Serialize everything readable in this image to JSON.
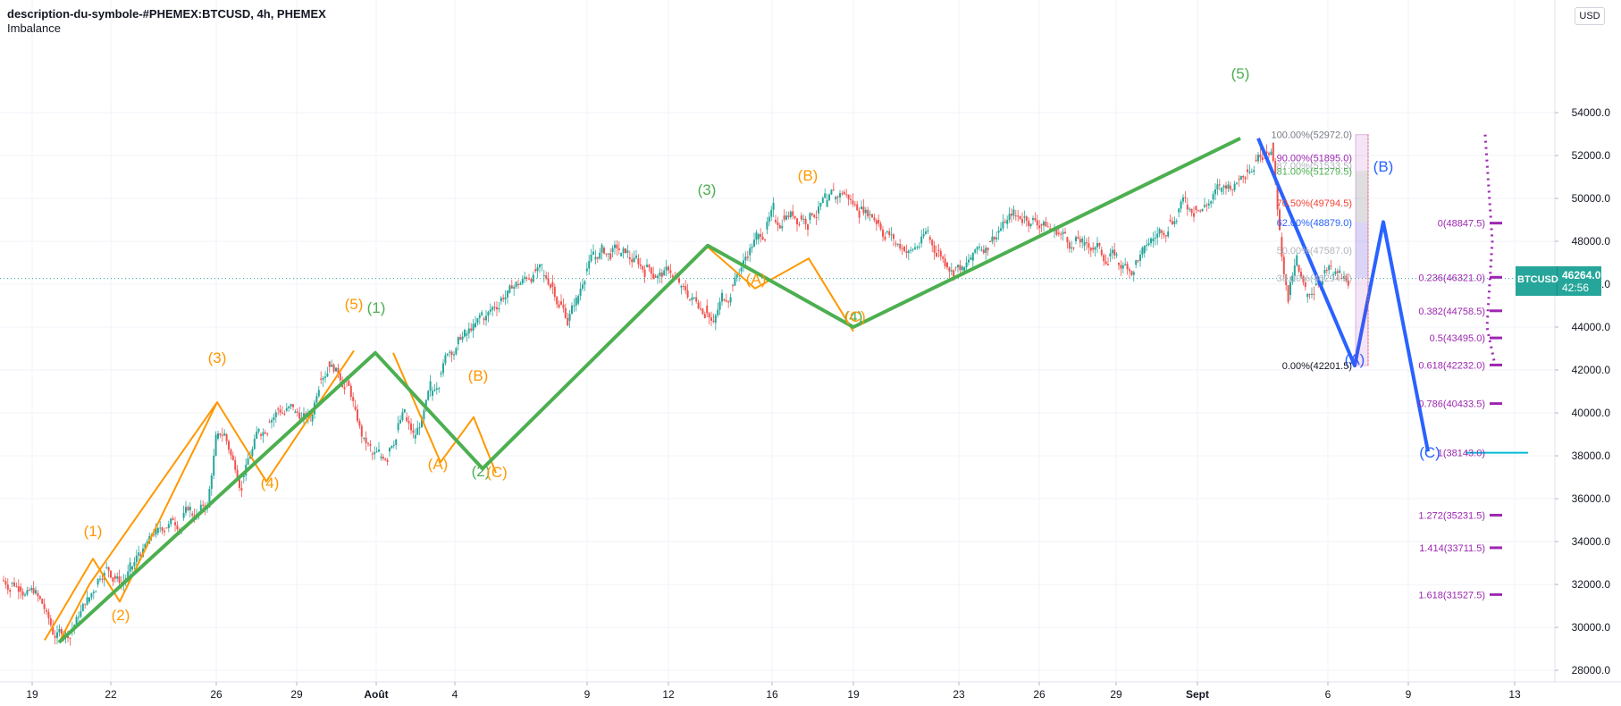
{
  "header": {
    "title": "description-du-symbole-#PHEMEX:BTCUSD, 4h, PHEMEX",
    "indicator": "Imbalance"
  },
  "currency_button": "USD",
  "price_box": {
    "symbol": "BTCUSD",
    "price": "46264.0",
    "countdown": "42:56"
  },
  "colors": {
    "green_wave": "#4caf50",
    "orange_wave": "#ff9800",
    "blue_wave": "#2962ff",
    "fib_ext": "#9c27b0",
    "up_candle": "#26a69a",
    "down_candle": "#ef5350",
    "target_line": "#00bcd4"
  },
  "chart_data": {
    "type": "candlestick",
    "y_axis": {
      "ticks": [
        "28000.0",
        "30000.0",
        "32000.0",
        "34000.0",
        "36000.0",
        "38000.0",
        "40000.0",
        "42000.0",
        "44000.0",
        "46000.0",
        "48000.0",
        "50000.0",
        "52000.0",
        "54000.0"
      ],
      "ylim": [
        27200,
        56000
      ],
      "top_label": "5"
    },
    "x_axis": {
      "ticks": [
        "19",
        "22",
        "26",
        "29",
        "Août",
        "4",
        "9",
        "12",
        "16",
        "19",
        "23",
        "26",
        "29",
        "Sept",
        "6",
        "9",
        "13"
      ]
    },
    "current_price": 46264.0,
    "price_path": [
      [
        0,
        32200
      ],
      [
        2,
        31900
      ],
      [
        4,
        31600
      ],
      [
        5,
        30800
      ],
      [
        6,
        29600
      ],
      [
        8,
        29800
      ],
      [
        10,
        31200
      ],
      [
        12,
        32800
      ],
      [
        14,
        32000
      ],
      [
        16,
        33400
      ],
      [
        18,
        34400
      ],
      [
        20,
        34900
      ],
      [
        22,
        35300
      ],
      [
        24,
        35600
      ],
      [
        25,
        38800
      ],
      [
        26,
        39000
      ],
      [
        27,
        37800
      ],
      [
        28,
        37000
      ],
      [
        30,
        39000
      ],
      [
        32,
        40200
      ],
      [
        34,
        40000
      ],
      [
        36,
        39600
      ],
      [
        37,
        41600
      ],
      [
        38,
        42400
      ],
      [
        39,
        42100
      ],
      [
        40,
        41600
      ],
      [
        41,
        40300
      ],
      [
        42,
        38800
      ],
      [
        43,
        38100
      ],
      [
        44,
        37900
      ],
      [
        45,
        38200
      ],
      [
        46,
        39200
      ],
      [
        47,
        39800
      ],
      [
        48,
        38800
      ],
      [
        49,
        39700
      ],
      [
        50,
        40800
      ],
      [
        52,
        42800
      ],
      [
        54,
        43600
      ],
      [
        56,
        44400
      ],
      [
        58,
        45200
      ],
      [
        60,
        46000
      ],
      [
        61,
        46300
      ],
      [
        62,
        46700
      ],
      [
        64,
        46100
      ],
      [
        66,
        44300
      ],
      [
        67,
        45100
      ],
      [
        68,
        46600
      ],
      [
        70,
        47700
      ],
      [
        72,
        47300
      ],
      [
        74,
        47200
      ],
      [
        76,
        46400
      ],
      [
        78,
        46400
      ],
      [
        80,
        45300
      ],
      [
        82,
        45000
      ],
      [
        83,
        44200
      ],
      [
        84,
        45300
      ],
      [
        86,
        46600
      ],
      [
        88,
        48100
      ],
      [
        90,
        49000
      ],
      [
        92,
        49400
      ],
      [
        94,
        49000
      ],
      [
        96,
        49600
      ],
      [
        98,
        50300
      ],
      [
        100,
        49500
      ],
      [
        102,
        49000
      ],
      [
        104,
        47900
      ],
      [
        106,
        47600
      ],
      [
        108,
        48200
      ],
      [
        110,
        47000
      ],
      [
        112,
        46600
      ],
      [
        114,
        47600
      ],
      [
        116,
        48400
      ],
      [
        118,
        49200
      ],
      [
        120,
        49000
      ],
      [
        122,
        48600
      ],
      [
        124,
        48200
      ],
      [
        126,
        47800
      ],
      [
        128,
        47600
      ],
      [
        130,
        47000
      ],
      [
        132,
        46900
      ],
      [
        134,
        48000
      ],
      [
        136,
        49000
      ],
      [
        138,
        49700
      ],
      [
        140,
        49600
      ],
      [
        142,
        50300
      ],
      [
        144,
        50900
      ],
      [
        146,
        51800
      ],
      [
        148,
        52600
      ],
      [
        149,
        48200
      ],
      [
        150,
        45500
      ],
      [
        151,
        46900
      ],
      [
        152,
        45400
      ],
      [
        154,
        46500
      ],
      [
        156,
        46300
      ],
      [
        157,
        46264
      ]
    ],
    "green_waves": [
      {
        "label": "(1)",
        "x": "Août",
        "y": 42800
      },
      {
        "label": "(2)",
        "x": "4",
        "y": 37400
      },
      {
        "label": "(3)",
        "x": "12",
        "y": 47800
      },
      {
        "label": "(4)",
        "x": "19",
        "y": 44000
      },
      {
        "label": "(5)",
        "x": "Sept",
        "y": 52800
      }
    ],
    "orange_waves": [
      "(1)",
      "(2)",
      "(3)",
      "(4)",
      "(5)",
      "(A)",
      "(B)",
      "(C)",
      "(A)",
      "(B)",
      "(C)"
    ],
    "blue_waves": [
      "(A)",
      "(B)",
      "(C)"
    ],
    "fib_retracement": [
      {
        "label": "100.00%(52972.0)",
        "price": 52972.0
      },
      {
        "label": "90.00%(51895.0)",
        "price": 51895.0
      },
      {
        "label": "87.00%(51533.5)",
        "price": 51533.5
      },
      {
        "label": "81.00%(51279.5)",
        "price": 51279.5
      },
      {
        "label": "70.50%(49794.5)",
        "price": 49794.5
      },
      {
        "label": "62.00%(48879.0)",
        "price": 48879.0
      },
      {
        "label": "50.00%(47587.0)",
        "price": 47587.0
      },
      {
        "label": "38.00%(46294.5)",
        "price": 46294.5
      },
      {
        "label": "0.00%(42201.5)",
        "price": 42201.5
      }
    ],
    "fib_extension": [
      {
        "label": "0(48847.5)",
        "price": 48847.5
      },
      {
        "label": "0.236(46321.0)",
        "price": 46321.0
      },
      {
        "label": "0.382(44758.5)",
        "price": 44758.5
      },
      {
        "label": "0.5(43495.0)",
        "price": 43495.0
      },
      {
        "label": "0.618(42232.0)",
        "price": 42232.0
      },
      {
        "label": "0.786(40433.5)",
        "price": 40433.5
      },
      {
        "label": "1(38143.0)",
        "price": 38143.0
      },
      {
        "label": "1.272(35231.5)",
        "price": 35231.5
      },
      {
        "label": "1.414(33711.5)",
        "price": 33711.5
      },
      {
        "label": "1.618(31527.5)",
        "price": 31527.5
      }
    ]
  }
}
